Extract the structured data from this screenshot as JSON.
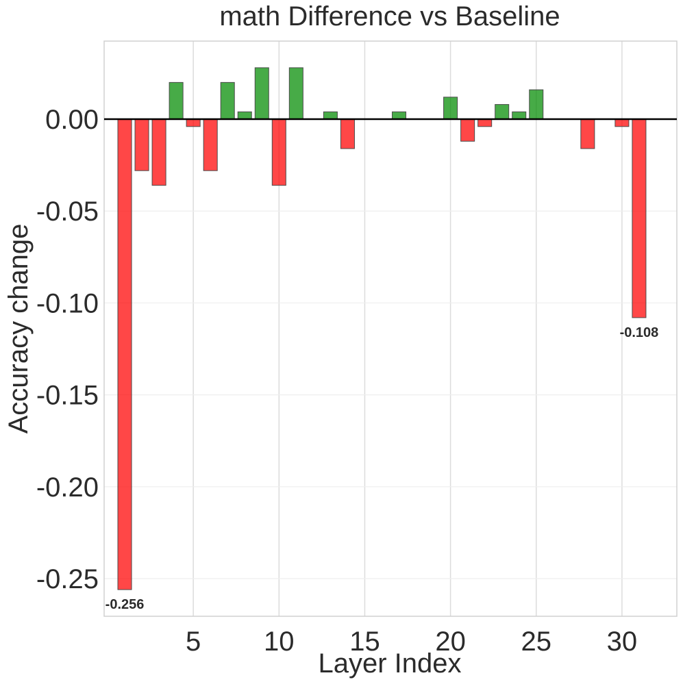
{
  "chart_data": {
    "type": "bar",
    "title": "math Difference vs Baseline",
    "xlabel": "Layer Index",
    "ylabel": "Accuracy change",
    "xlim": [
      -0.2,
      33.2
    ],
    "ylim": [
      -0.2705,
      0.0425
    ],
    "xticks": [
      5,
      10,
      15,
      20,
      25,
      30
    ],
    "yticks": [
      0.0,
      -0.05,
      -0.1,
      -0.15,
      -0.2,
      -0.25
    ],
    "ytick_labels": [
      "0.00",
      "-0.05",
      "-0.10",
      "-0.15",
      "-0.20",
      "-0.25"
    ],
    "x": [
      1,
      2,
      3,
      4,
      5,
      6,
      7,
      8,
      9,
      10,
      11,
      12,
      13,
      14,
      15,
      16,
      17,
      18,
      19,
      20,
      21,
      22,
      23,
      24,
      25,
      26,
      27,
      28,
      29,
      30,
      31
    ],
    "values": [
      -0.256,
      -0.028,
      -0.036,
      0.02,
      -0.004,
      -0.028,
      0.02,
      0.004,
      0.028,
      -0.036,
      0.028,
      0.0,
      0.004,
      -0.016,
      0.0,
      0.0,
      0.004,
      0.0,
      0.0,
      0.012,
      -0.012,
      -0.004,
      0.008,
      0.004,
      0.016,
      0.0,
      0.0,
      -0.016,
      0.0,
      -0.004,
      -0.108
    ],
    "annotations": [
      {
        "x": 1,
        "value": -0.256,
        "text": "-0.256"
      },
      {
        "x": 31,
        "value": -0.108,
        "text": "-0.108"
      }
    ],
    "colors": {
      "positive": "#008a00",
      "negative": "#ff0000",
      "zero_line": "#000000"
    },
    "grid": true
  }
}
